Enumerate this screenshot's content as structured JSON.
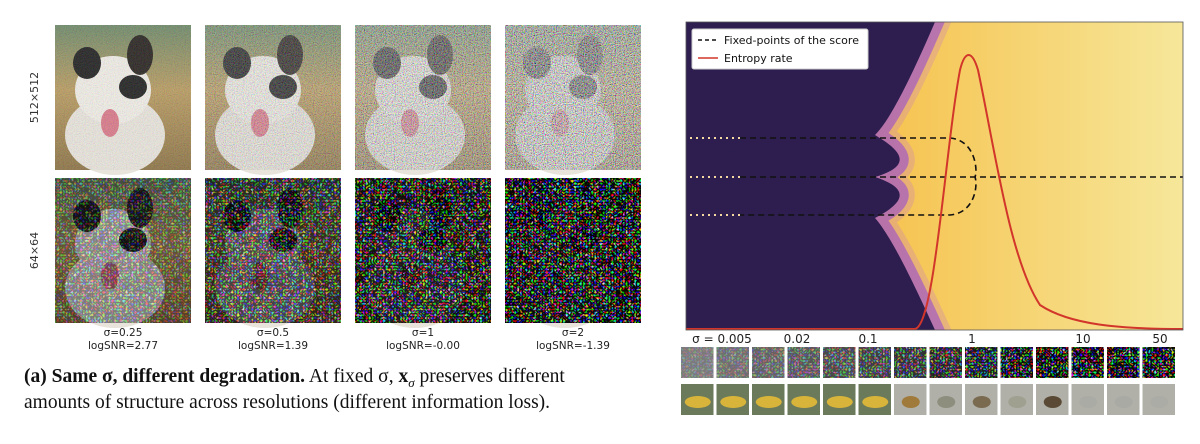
{
  "left": {
    "row_labels": [
      "512×512",
      "64×64"
    ],
    "columns": [
      {
        "sigma": "σ=0.25",
        "logsnr": "logSNR=2.77"
      },
      {
        "sigma": "σ=0.5",
        "logsnr": "logSNR=1.39"
      },
      {
        "sigma": "σ=1",
        "logsnr": "logSNR=-0.00"
      },
      {
        "sigma": "σ=2",
        "logsnr": "logSNR=-1.39"
      }
    ],
    "caption": {
      "label": "(a) Same σ, different degradation.",
      "text_before": "At fixed σ,",
      "symbol": "x",
      "subscript": "σ",
      "text_after": "preserves different",
      "line2": "amounts of structure across resolutions (different information loss)."
    }
  },
  "right": {
    "legend": [
      "Fixed-points of the score",
      "Entropy rate"
    ],
    "sigma_labels": [
      "σ = 0.005",
      "0.02",
      "0.1",
      "1",
      "10",
      "50"
    ]
  }
}
